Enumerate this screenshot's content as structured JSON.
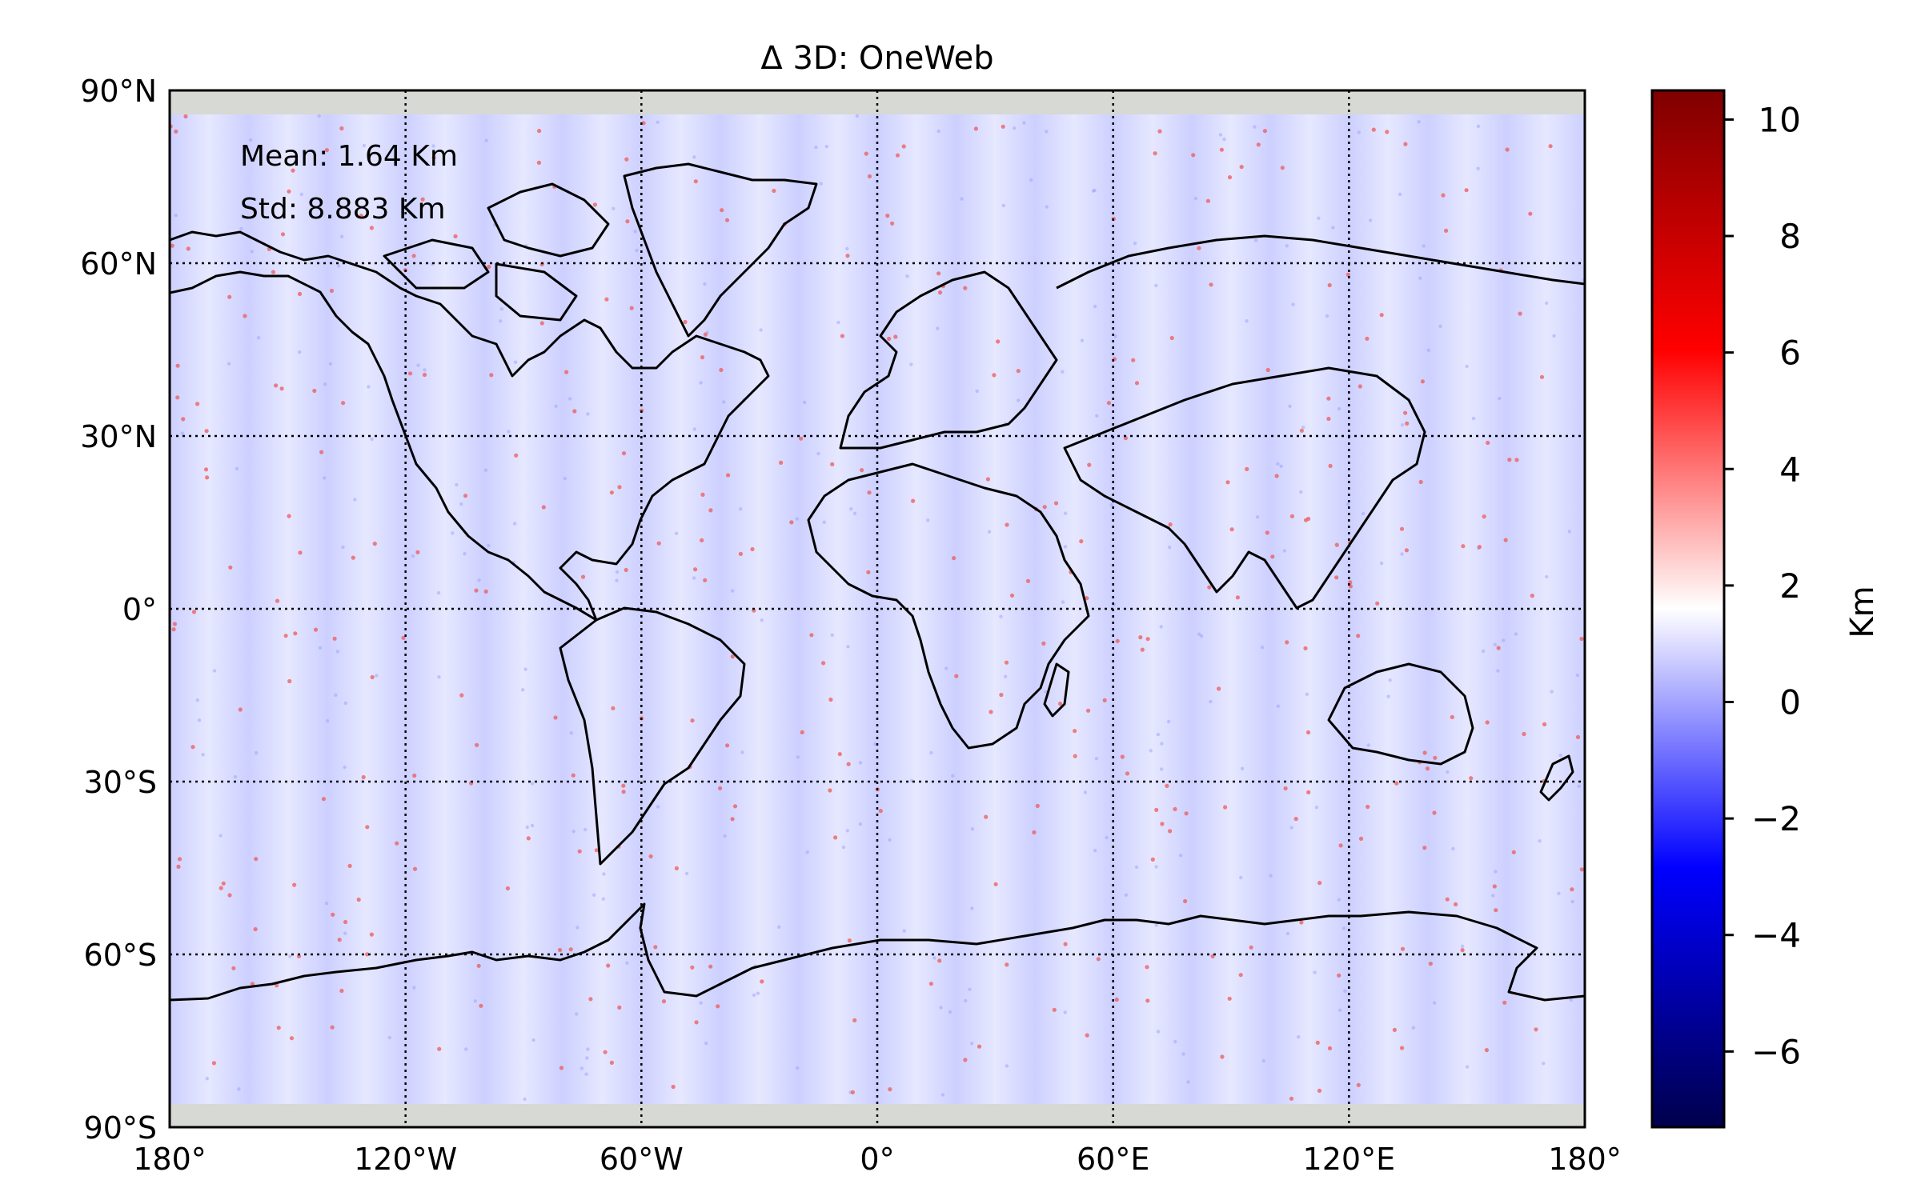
{
  "title": "Δ 3D: OneWeb",
  "stats": {
    "mean": "Mean: 1.64 Km",
    "std": "Std: 8.883 Km"
  },
  "axes": {
    "lat_ticks": [
      {
        "value": 90,
        "label": "90°N"
      },
      {
        "value": 60,
        "label": "60°N"
      },
      {
        "value": 30,
        "label": "30°N"
      },
      {
        "value": 0,
        "label": "0°"
      },
      {
        "value": -30,
        "label": "30°S"
      },
      {
        "value": -60,
        "label": "60°S"
      },
      {
        "value": -90,
        "label": "90°S"
      }
    ],
    "lon_ticks": [
      {
        "value": -180,
        "label": "180°"
      },
      {
        "value": -120,
        "label": "120°W"
      },
      {
        "value": -60,
        "label": "60°W"
      },
      {
        "value": 0,
        "label": "0°"
      },
      {
        "value": 60,
        "label": "60°E"
      },
      {
        "value": 120,
        "label": "120°E"
      },
      {
        "value": 180,
        "label": "180°"
      }
    ],
    "lon_range": [
      -180,
      180
    ],
    "lat_range": [
      -90,
      90
    ],
    "gridlines": "dotted"
  },
  "colorbar": {
    "label": "Km",
    "range": [
      -7.3,
      10.5
    ],
    "ticks": [
      {
        "value": 10,
        "label": "10"
      },
      {
        "value": 8,
        "label": "8"
      },
      {
        "value": 6,
        "label": "6"
      },
      {
        "value": 4,
        "label": "4"
      },
      {
        "value": 2,
        "label": "2"
      },
      {
        "value": 0,
        "label": "0"
      },
      {
        "value": -2,
        "label": "−2"
      },
      {
        "value": -4,
        "label": "−4"
      },
      {
        "value": -6,
        "label": "−6"
      }
    ],
    "colormap": "seismic",
    "colors": [
      "#00004c",
      "#0000ff",
      "#ffffff",
      "#ff0000",
      "#7f0000"
    ]
  },
  "colors": {
    "field_base": "#dadcff",
    "polar_band": "#d6d9d4",
    "coastline": "#000000"
  }
}
